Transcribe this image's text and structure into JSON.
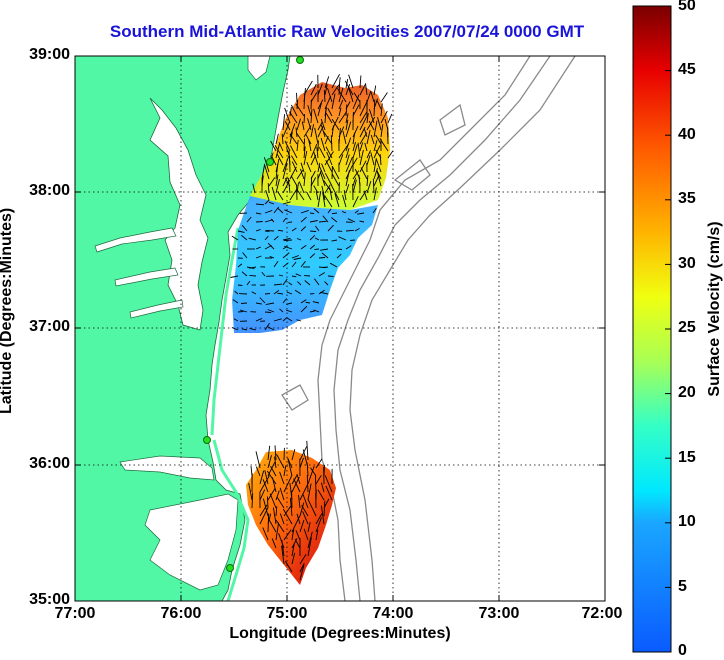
{
  "title": "Southern Mid-Atlantic Raw Velocities 2007/07/24 0000 GMT",
  "x_axis": {
    "label": "Longitude (Degrees:Minutes)",
    "ticks": [
      "77:00",
      "76:00",
      "75:00",
      "74:00",
      "73:00",
      "72:00"
    ]
  },
  "y_axis": {
    "label": "Latitude (Degrees:Minutes)",
    "ticks": [
      "39:00",
      "38:00",
      "37:00",
      "36:00",
      "35:00"
    ]
  },
  "colorbar": {
    "label": "Surface Velocity (cm/s)",
    "ticks": [
      "50",
      "45",
      "40",
      "35",
      "30",
      "25",
      "20",
      "15",
      "10",
      "5",
      "0"
    ],
    "range": [
      0,
      50
    ],
    "colormap": "jet"
  },
  "colors": {
    "title": "#1a14d8",
    "land": "#52f7a6",
    "water": "#ffffff",
    "bathymetry": "#8a8a8a",
    "station": "#22dd22"
  },
  "map": {
    "lon_range": [
      -77,
      -72
    ],
    "lat_range": [
      35,
      39
    ],
    "grid": "dotted",
    "regions": [
      {
        "name": "northern field",
        "speed_range_cms": [
          20,
          45
        ]
      },
      {
        "name": "central field",
        "speed_range_cms": [
          3,
          12
        ]
      },
      {
        "name": "southern field",
        "speed_range_cms": [
          28,
          48
        ]
      }
    ]
  }
}
